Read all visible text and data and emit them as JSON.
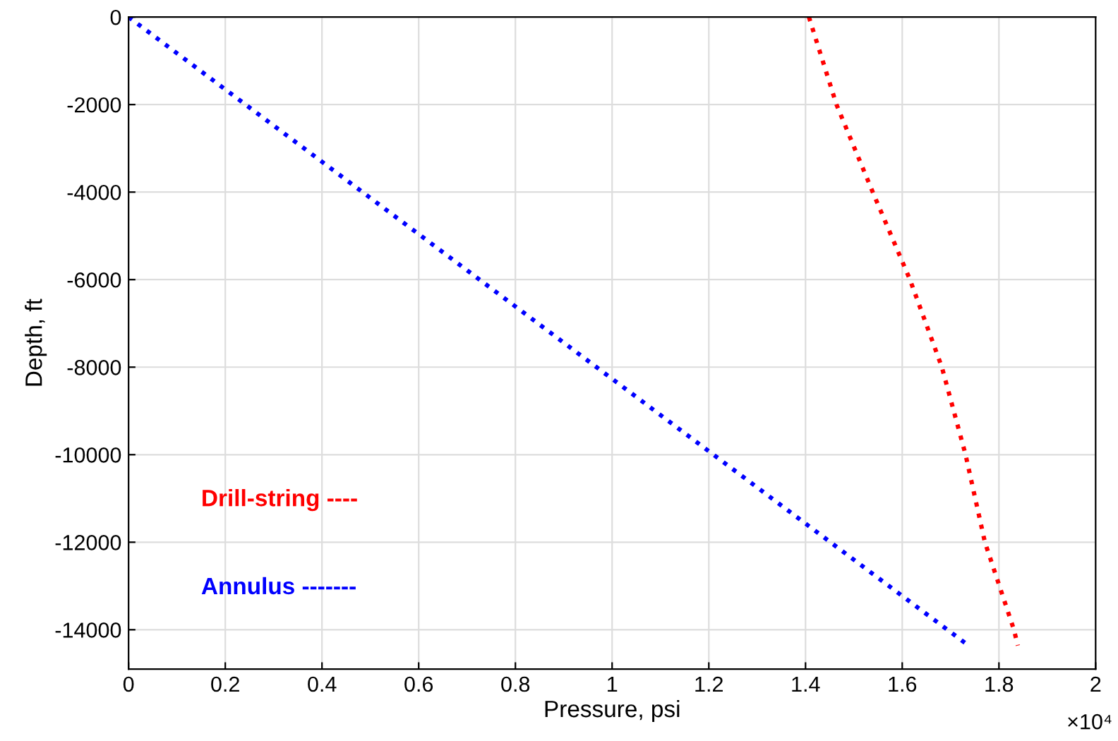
{
  "chart_data": {
    "type": "line",
    "xlabel": "Pressure, psi",
    "ylabel": "Depth, ft",
    "xlim": [
      0,
      2
    ],
    "ylim": [
      -14900,
      0
    ],
    "xticks": [
      0,
      0.2,
      0.4,
      0.6,
      0.8,
      1,
      1.2,
      1.4,
      1.6,
      1.8,
      2
    ],
    "yticks": [
      0,
      -2000,
      -4000,
      -6000,
      -8000,
      -10000,
      -12000,
      -14000
    ],
    "annotations": [
      "×10⁴"
    ],
    "grid": true,
    "legend": "bottom left",
    "line_style": "dotted",
    "marker": "none",
    "series": [
      {
        "name": "Drill-string ----",
        "color": "#ff0000",
        "x": [
          1.407,
          1.464,
          1.539,
          1.616,
          1.682,
          1.731,
          1.771,
          1.831,
          1.839
        ],
        "values": [
          0,
          -2000,
          -4000,
          -6000,
          -8000,
          -10000,
          -12000,
          -14000,
          -14360
        ]
      },
      {
        "name": "Annulus -------",
        "color": "#0000ff",
        "x": [
          0,
          0.8685,
          1.737
        ],
        "values": [
          0,
          -7180,
          -14360
        ]
      }
    ]
  }
}
